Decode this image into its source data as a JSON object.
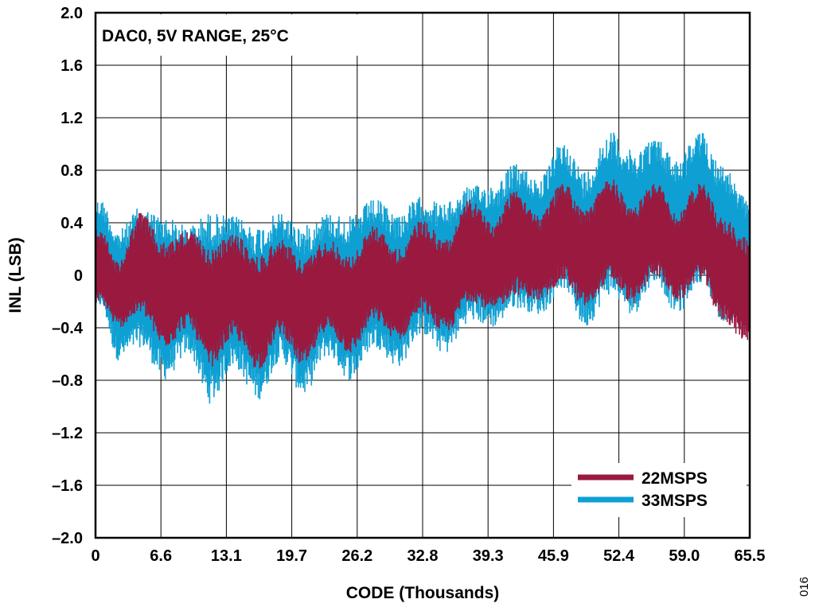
{
  "chart_data": {
    "type": "line",
    "annotation": "DAC0, 5V RANGE, 25°C",
    "xlabel": "CODE (Thousands)",
    "ylabel": "INL (LSB)",
    "xlim": [
      0,
      65.5
    ],
    "ylim": [
      -2.0,
      2.0
    ],
    "x_ticks": [
      "0",
      "6.6",
      "13.1",
      "19.7",
      "26.2",
      "32.8",
      "39.3",
      "45.9",
      "52.4",
      "59.0",
      "65.5"
    ],
    "y_ticks": [
      "2.0",
      "1.6",
      "1.2",
      "0.8",
      "0.4",
      "0",
      "–0.4",
      "–0.8",
      "–1.2",
      "–1.6",
      "–2.0"
    ],
    "grid": true,
    "legend_position": "bottom-right",
    "series": [
      {
        "name": "33MSPS",
        "color": "#0fa0d3",
        "x": [
          0.5,
          2.3,
          4.5,
          6.9,
          9.3,
          11.5,
          13.8,
          16.3,
          18.5,
          20.8,
          23.2,
          25.5,
          27.9,
          30.3,
          32.6,
          35.0,
          37.5,
          39.8,
          42.0,
          44.5,
          46.8,
          49.0,
          51.5,
          53.8,
          56.0,
          58.3,
          60.5,
          62.8,
          65.0
        ],
        "upper": [
          0.58,
          0.35,
          0.52,
          0.45,
          0.38,
          0.48,
          0.45,
          0.38,
          0.48,
          0.38,
          0.48,
          0.45,
          0.58,
          0.48,
          0.6,
          0.55,
          0.68,
          0.7,
          0.85,
          0.75,
          1.02,
          0.8,
          1.1,
          0.95,
          1.05,
          0.9,
          1.1,
          0.85,
          0.6
        ],
        "lower": [
          -0.25,
          -0.65,
          -0.55,
          -0.8,
          -0.6,
          -0.98,
          -0.7,
          -0.95,
          -0.65,
          -0.92,
          -0.62,
          -0.8,
          -0.55,
          -0.7,
          -0.45,
          -0.6,
          -0.35,
          -0.4,
          -0.25,
          -0.3,
          -0.1,
          -0.4,
          -0.15,
          -0.3,
          -0.05,
          -0.3,
          -0.05,
          -0.35,
          -0.35
        ]
      },
      {
        "name": "22MSPS",
        "color": "#99193f",
        "x": [
          0.5,
          2.3,
          4.5,
          6.9,
          9.3,
          11.5,
          13.8,
          16.3,
          18.5,
          20.8,
          23.2,
          25.5,
          27.9,
          30.3,
          32.6,
          35.0,
          37.5,
          39.8,
          42.0,
          44.5,
          46.8,
          49.0,
          51.5,
          53.8,
          56.0,
          58.3,
          60.5,
          62.8,
          65.0
        ],
        "upper": [
          0.35,
          0.1,
          0.48,
          0.25,
          0.35,
          0.2,
          0.32,
          0.15,
          0.28,
          0.12,
          0.28,
          0.15,
          0.38,
          0.2,
          0.42,
          0.28,
          0.58,
          0.4,
          0.68,
          0.45,
          0.72,
          0.5,
          0.75,
          0.52,
          0.72,
          0.48,
          0.72,
          0.45,
          0.3
        ],
        "lower": [
          -0.22,
          -0.4,
          -0.3,
          -0.55,
          -0.4,
          -0.7,
          -0.48,
          -0.72,
          -0.45,
          -0.7,
          -0.42,
          -0.6,
          -0.35,
          -0.5,
          -0.28,
          -0.45,
          -0.2,
          -0.28,
          -0.15,
          -0.2,
          -0.05,
          -0.25,
          -0.05,
          -0.22,
          0.0,
          -0.2,
          -0.03,
          -0.35,
          -0.5
        ]
      }
    ]
  },
  "figure_id": "016"
}
